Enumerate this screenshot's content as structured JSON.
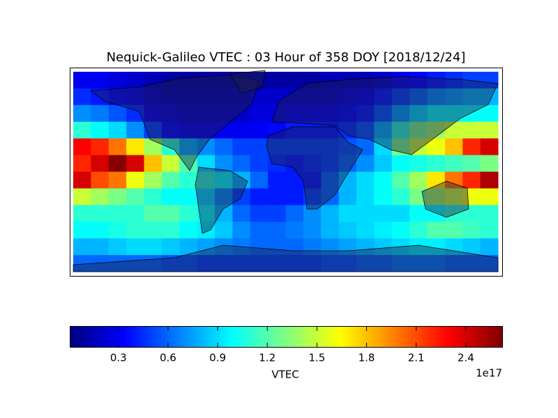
{
  "chart_data": {
    "type": "heatmap",
    "title": "Nequick-Galileo VTEC : 03 Hour of 358 DOY [2018/12/24]",
    "colormap": "jet",
    "z": [
      [
        0.3,
        0.3,
        0.25,
        0.2,
        0.15,
        0.1,
        0.1,
        0.1,
        0.1,
        0.1,
        0.1,
        0.1,
        0.1,
        0.1,
        0.15,
        0.15,
        0.15,
        0.2,
        0.3,
        0.35,
        0.4,
        0.45,
        0.5,
        0.5
      ],
      [
        0.45,
        0.4,
        0.35,
        0.3,
        0.2,
        0.15,
        0.15,
        0.15,
        0.15,
        0.15,
        0.2,
        0.2,
        0.2,
        0.2,
        0.2,
        0.25,
        0.3,
        0.4,
        0.5,
        0.6,
        0.7,
        0.75,
        0.8,
        0.8
      ],
      [
        0.7,
        0.65,
        0.55,
        0.45,
        0.3,
        0.25,
        0.2,
        0.2,
        0.2,
        0.2,
        0.25,
        0.25,
        0.3,
        0.3,
        0.3,
        0.35,
        0.4,
        0.55,
        0.75,
        0.9,
        1.0,
        1.0,
        1.0,
        1.0
      ],
      [
        1.1,
        1.0,
        0.9,
        0.7,
        0.5,
        0.35,
        0.3,
        0.3,
        0.3,
        0.3,
        0.3,
        0.35,
        0.4,
        0.4,
        0.4,
        0.45,
        0.55,
        0.8,
        1.1,
        1.3,
        1.4,
        1.5,
        1.5,
        1.5
      ],
      [
        2.3,
        2.2,
        2.0,
        1.7,
        1.4,
        1.1,
        0.8,
        0.7,
        0.6,
        0.5,
        0.5,
        0.5,
        0.5,
        0.5,
        0.5,
        0.55,
        0.6,
        0.9,
        1.3,
        1.5,
        1.6,
        1.8,
        2.2,
        2.4
      ],
      [
        2.2,
        2.4,
        2.6,
        2.4,
        1.8,
        1.5,
        1.2,
        0.9,
        0.7,
        0.6,
        0.5,
        0.45,
        0.4,
        0.45,
        0.5,
        0.6,
        0.7,
        0.85,
        1.0,
        1.05,
        1.1,
        1.15,
        1.2,
        1.3
      ],
      [
        2.4,
        2.1,
        2.0,
        1.6,
        1.4,
        1.2,
        1.1,
        1.1,
        1.0,
        0.8,
        0.6,
        0.4,
        0.4,
        0.4,
        0.6,
        0.8,
        0.9,
        1.0,
        1.2,
        1.4,
        1.7,
        2.0,
        2.2,
        2.5
      ],
      [
        1.5,
        1.4,
        1.3,
        1.2,
        1.1,
        1.0,
        1.0,
        0.9,
        0.7,
        0.5,
        0.4,
        0.4,
        0.4,
        0.5,
        0.6,
        0.8,
        0.9,
        1.0,
        1.1,
        1.3,
        1.4,
        1.5,
        1.6,
        1.6
      ],
      [
        1.1,
        1.1,
        1.1,
        1.1,
        1.2,
        1.2,
        1.1,
        1.0,
        0.8,
        0.6,
        0.5,
        0.5,
        0.6,
        0.7,
        0.8,
        0.9,
        0.9,
        0.9,
        0.9,
        1.0,
        1.0,
        1.1,
        1.1,
        1.1
      ],
      [
        1.0,
        1.0,
        1.05,
        1.1,
        1.1,
        1.1,
        1.0,
        0.95,
        0.85,
        0.7,
        0.6,
        0.6,
        0.65,
        0.7,
        0.8,
        0.85,
        0.9,
        0.95,
        1.0,
        1.1,
        1.2,
        1.2,
        1.15,
        1.1
      ],
      [
        0.8,
        0.8,
        0.85,
        0.9,
        0.9,
        0.85,
        0.8,
        0.75,
        0.7,
        0.65,
        0.6,
        0.6,
        0.6,
        0.65,
        0.7,
        0.75,
        0.8,
        0.85,
        0.9,
        0.95,
        0.95,
        0.9,
        0.85,
        0.8
      ],
      [
        0.6,
        0.6,
        0.6,
        0.6,
        0.6,
        0.55,
        0.55,
        0.5,
        0.5,
        0.5,
        0.5,
        0.5,
        0.5,
        0.5,
        0.55,
        0.55,
        0.6,
        0.6,
        0.65,
        0.65,
        0.65,
        0.6,
        0.6,
        0.6
      ]
    ],
    "colorbar": {
      "label": "VTEC",
      "offset_text": "1e17",
      "clim": [
        0.01,
        2.62
      ],
      "ticks": [
        0.3,
        0.6,
        0.9,
        1.2,
        1.5,
        1.8,
        2.1,
        2.4
      ]
    }
  }
}
